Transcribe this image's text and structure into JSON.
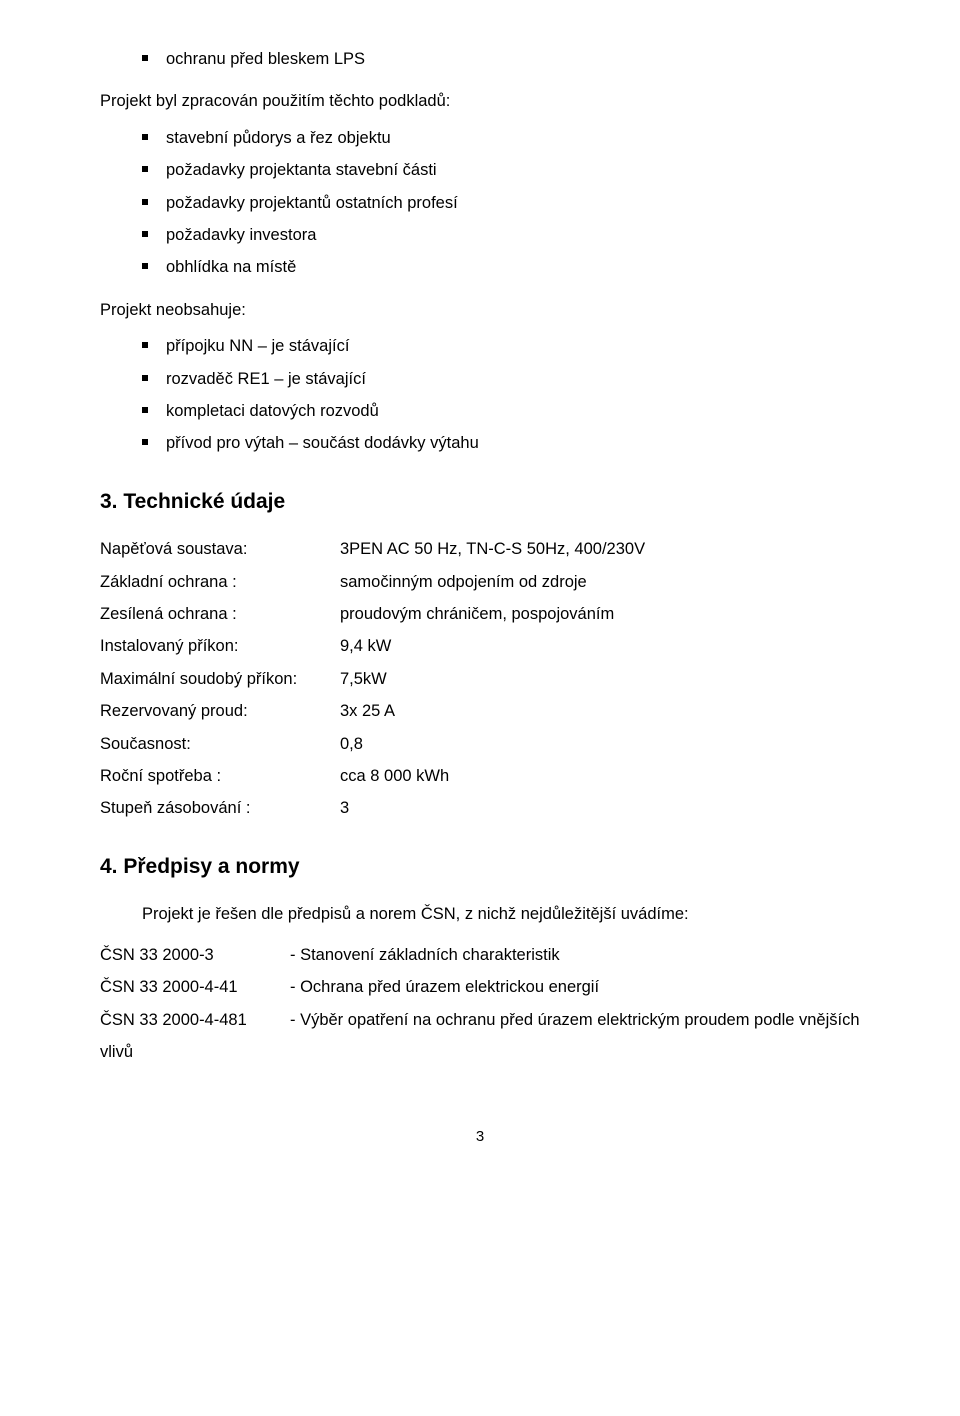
{
  "top_bullet": "ochranu před bleskem LPS",
  "intro1": "Projekt byl zpracován použitím těchto podkladů:",
  "podklady": [
    "stavební půdorys a řez objektu",
    "požadavky projektanta stavební části",
    "požadavky projektantů ostatních profesí",
    "požadavky investora",
    "obhlídka na místě"
  ],
  "intro2": "Projekt neobsahuje:",
  "neobsahuje": [
    "přípojku NN – je stávající",
    "rozvaděč RE1 – je stávající",
    "kompletaci datových rozvodů",
    "přívod pro výtah – součást dodávky výtahu"
  ],
  "h3": "3. Technické údaje",
  "specs": [
    {
      "label": "Napěťová soustava:",
      "value": "3PEN AC 50 Hz, TN-C-S 50Hz, 400/230V"
    },
    {
      "label": "Základní ochrana :",
      "value": "samočinným odpojením od zdroje"
    },
    {
      "label": "Zesílená ochrana :",
      "value": "proudovým chráničem, pospojováním"
    },
    {
      "label": "Instalovaný příkon:",
      "value": "9,4 kW"
    },
    {
      "label": "Maximální soudobý příkon:",
      "value": "7,5kW"
    },
    {
      "label": "Rezervovaný proud:",
      "value": "3x 25 A"
    },
    {
      "label": "Současnost:",
      "value": "0,8"
    },
    {
      "label": "Roční spotřeba :",
      "value": "cca 8 000 kWh"
    },
    {
      "label": "Stupeň zásobování :",
      "value": "3"
    }
  ],
  "h4": "4. Předpisy a normy",
  "normy_intro": "Projekt je řešen dle předpisů a norem ČSN, z nichž nejdůležitější uvádíme:",
  "normy": [
    {
      "code": "ČSN 33 2000-3",
      "desc": "- Stanovení základních charakteristik"
    },
    {
      "code": "ČSN 33 2000-4-41",
      "desc": "- Ochrana před úrazem elektrickou energií"
    },
    {
      "code": "ČSN 33 2000-4-481",
      "desc": "- Výběr opatření na ochranu před úrazem elektrickým proudem podle vnějších"
    }
  ],
  "normy_tail": "vlivů",
  "page_number": "3"
}
